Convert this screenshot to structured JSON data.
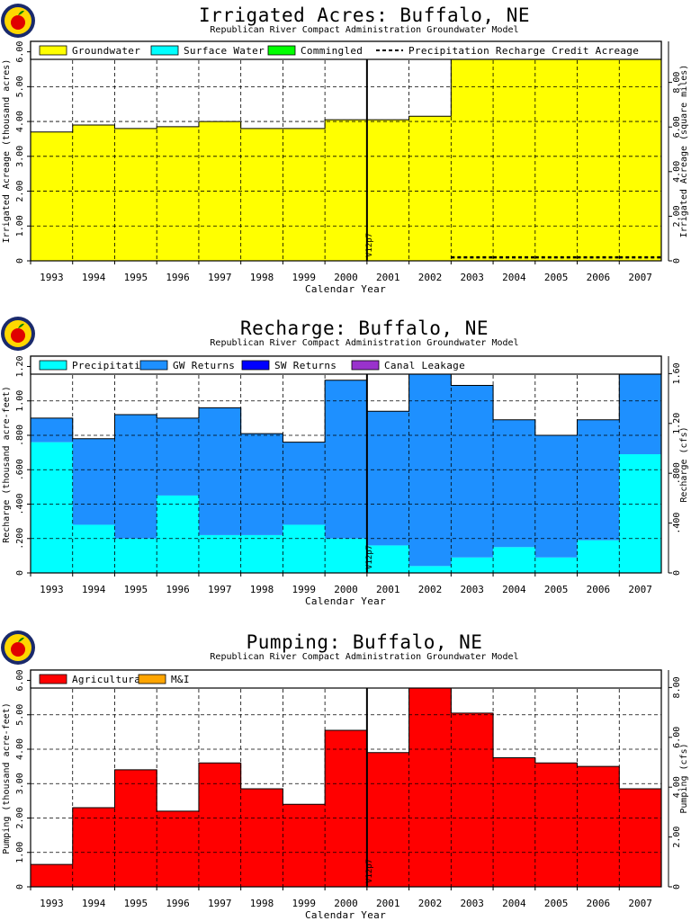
{
  "chart_data": [
    {
      "type": "area",
      "title": "Irrigated Acres: Buffalo, NE",
      "subtitle": "Republican River Compact Administration Groundwater Model",
      "xlabel": "Calendar Year",
      "ylabel": "Irrigated Acreage (thousand acres)",
      "y2label": "Irrigated Acreage (square miles)",
      "categories": [
        "1993",
        "1994",
        "1995",
        "1996",
        "1997",
        "1998",
        "1999",
        "2000",
        "2001",
        "2002",
        "2003",
        "2004",
        "2005",
        "2006",
        "2007"
      ],
      "series": [
        {
          "name": "Groundwater",
          "color": "#ffff00",
          "values": [
            3.7,
            3.9,
            3.8,
            3.85,
            4.0,
            3.8,
            3.8,
            4.05,
            4.05,
            4.15,
            6.0,
            6.0,
            6.05,
            6.12,
            5.98
          ]
        },
        {
          "name": "Surface Water",
          "color": "#00ffff",
          "values": [
            0,
            0,
            0,
            0,
            0,
            0,
            0,
            0,
            0,
            0,
            0,
            0,
            0,
            0,
            0
          ]
        },
        {
          "name": "Commingled",
          "color": "#00ff00",
          "values": [
            0,
            0,
            0,
            0,
            0,
            0,
            0,
            0,
            0,
            0,
            0,
            0,
            0,
            0,
            0
          ]
        },
        {
          "name": "Precipitation Recharge Credit Acreage",
          "style": "dashed",
          "values": [
            0,
            0,
            0,
            0,
            0,
            0,
            0,
            0,
            0,
            0,
            0.1,
            0.1,
            0.1,
            0.1,
            0.1
          ]
        }
      ],
      "ylim": [
        0,
        6.3
      ],
      "yticks": [
        "0",
        "1.00",
        "2.00",
        "3.00",
        "4.00",
        "5.00",
        "6.00"
      ],
      "y2lim": [
        0,
        9.84
      ],
      "y2ticks": [
        "0",
        "2.00",
        "4.00",
        "6.00",
        "8.00"
      ],
      "marker": {
        "label": "V12p7",
        "x_between": [
          "2000",
          "2001"
        ]
      },
      "grid": true,
      "legend": "top"
    },
    {
      "type": "area",
      "title": "Recharge: Buffalo, NE",
      "subtitle": "Republican River Compact Administration Groundwater Model",
      "xlabel": "Calendar Year",
      "ylabel": "Recharge (thousand acre-feet)",
      "y2label": "Recharge (cfs)",
      "categories": [
        "1993",
        "1994",
        "1995",
        "1996",
        "1997",
        "1998",
        "1999",
        "2000",
        "2001",
        "2002",
        "2003",
        "2004",
        "2005",
        "2006",
        "2007"
      ],
      "series": [
        {
          "name": "Precipitation",
          "color": "#00ffff",
          "values": [
            0.76,
            0.28,
            0.2,
            0.45,
            0.22,
            0.22,
            0.28,
            0.2,
            0.16,
            0.04,
            0.09,
            0.15,
            0.09,
            0.19,
            0.69
          ]
        },
        {
          "name": "GW Returns",
          "color": "#1e90ff",
          "values": [
            0.14,
            0.5,
            0.72,
            0.45,
            0.74,
            0.59,
            0.48,
            0.92,
            0.78,
            1.2,
            1.0,
            0.74,
            0.71,
            0.7,
            0.57
          ]
        },
        {
          "name": "SW Returns",
          "color": "#0000ff",
          "values": [
            0,
            0,
            0,
            0,
            0,
            0,
            0,
            0,
            0,
            0,
            0,
            0,
            0,
            0,
            0
          ]
        },
        {
          "name": "Canal Leakage",
          "color": "#9932cc",
          "values": [
            0,
            0,
            0,
            0,
            0,
            0,
            0,
            0,
            0,
            0,
            0,
            0,
            0,
            0,
            0
          ]
        }
      ],
      "ylim": [
        0,
        1.26
      ],
      "yticks": [
        "0",
        ".200",
        ".400",
        ".600",
        ".800",
        "1.00",
        "1.20"
      ],
      "y2lim": [
        0,
        1.74
      ],
      "y2ticks": [
        "0",
        ".400",
        ".800",
        "1.20",
        "1.60"
      ],
      "marker": {
        "label": "V12p7",
        "x_between": [
          "2000",
          "2001"
        ]
      },
      "grid": true,
      "legend": "top"
    },
    {
      "type": "area",
      "title": "Pumping: Buffalo, NE",
      "subtitle": "Republican River Compact Administration Groundwater Model",
      "xlabel": "Calendar Year",
      "ylabel": "Pumping (thousand acre-feet)",
      "y2label": "Pumping (cfs)",
      "categories": [
        "1993",
        "1994",
        "1995",
        "1996",
        "1997",
        "1998",
        "1999",
        "2000",
        "2001",
        "2002",
        "2003",
        "2004",
        "2005",
        "2006",
        "2007"
      ],
      "series": [
        {
          "name": "Agricultural",
          "color": "#ff0000",
          "values": [
            0.65,
            2.3,
            3.4,
            2.2,
            3.6,
            2.85,
            2.4,
            4.55,
            3.9,
            6.05,
            5.05,
            3.75,
            3.6,
            3.5,
            2.85
          ]
        },
        {
          "name": "M&I",
          "color": "#ffa500",
          "values": [
            0,
            0,
            0,
            0,
            0,
            0,
            0,
            0,
            0,
            0,
            0,
            0,
            0,
            0,
            0
          ]
        }
      ],
      "ylim": [
        0,
        6.3
      ],
      "yticks": [
        "0",
        "1.00",
        "2.00",
        "3.00",
        "4.00",
        "5.00",
        "6.00"
      ],
      "y2lim": [
        0,
        8.7
      ],
      "y2ticks": [
        "0",
        "2.00",
        "4.00",
        "6.00",
        "8.00"
      ],
      "marker": {
        "label": "V12p7",
        "x_between": [
          "2000",
          "2001"
        ]
      },
      "grid": true,
      "legend": "top"
    }
  ]
}
